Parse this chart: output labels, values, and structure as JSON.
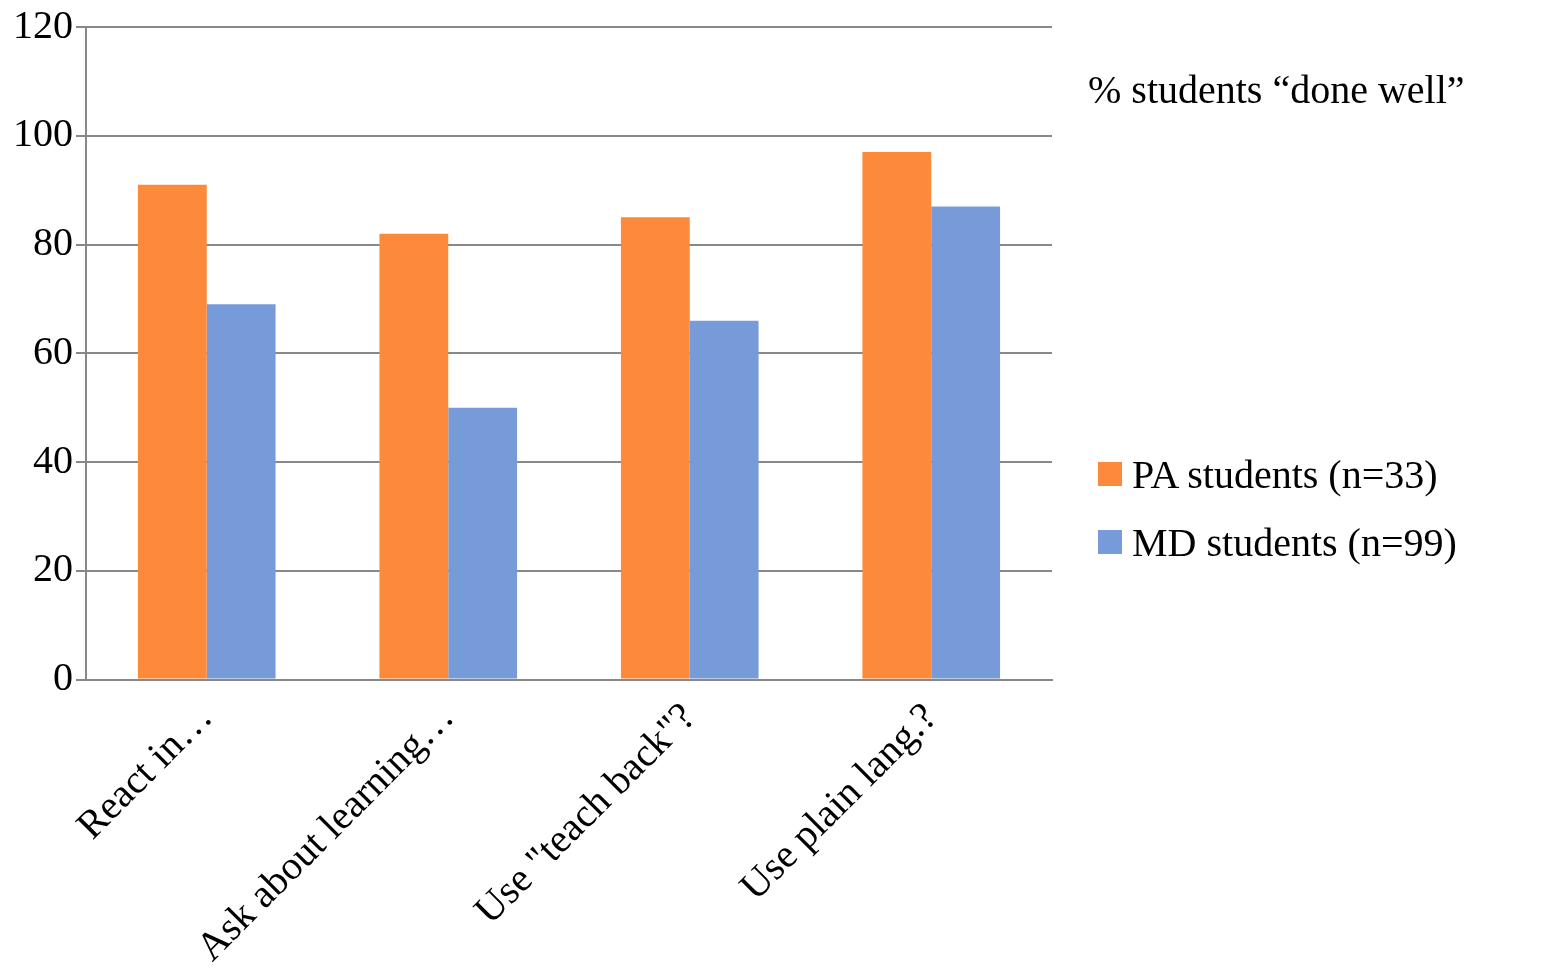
{
  "chart_data": {
    "type": "bar",
    "title": "% students  “done well”",
    "categories": [
      "React in…",
      "Ask about learning…",
      "Use \"teach back\"?",
      "Use plain lang.?"
    ],
    "series": [
      {
        "name": "PA students (n=33)",
        "color": "#fd8a3a",
        "values": [
          91,
          82,
          85,
          97
        ]
      },
      {
        "name": "MD students (n=99)",
        "color": "#779bd8",
        "values": [
          69,
          50,
          66,
          87
        ]
      }
    ],
    "ylim": [
      0,
      120
    ],
    "yticks": [
      0,
      20,
      40,
      60,
      80,
      100,
      120
    ],
    "grid": "y",
    "legend": "right"
  }
}
